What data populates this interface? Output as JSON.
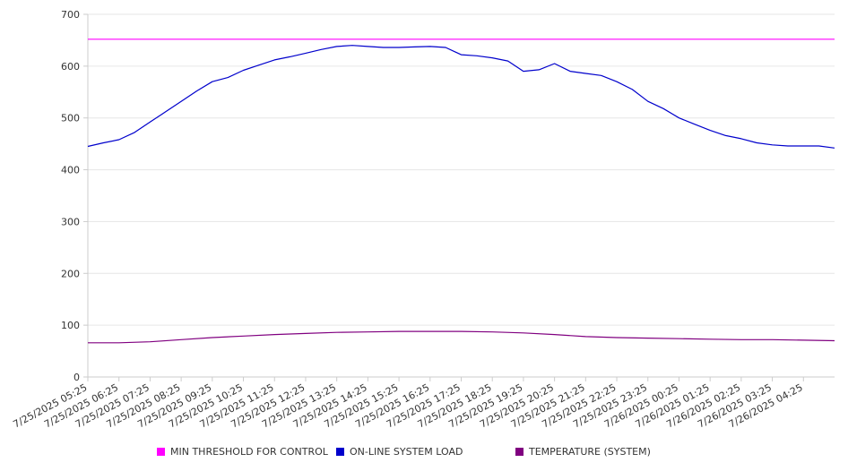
{
  "chart_data": {
    "type": "line",
    "ylim": [
      0,
      700
    ],
    "y_ticks": [
      0,
      100,
      200,
      300,
      400,
      500,
      600,
      700
    ],
    "x_tick_labels": [
      "7/25/2025 05:25",
      "7/25/2025 06:25",
      "7/25/2025 07:25",
      "7/25/2025 08:25",
      "7/25/2025 09:25",
      "7/25/2025 10:25",
      "7/25/2025 11:25",
      "7/25/2025 12:25",
      "7/25/2025 13:25",
      "7/25/2025 14:25",
      "7/25/2025 15:25",
      "7/25/2025 16:25",
      "7/25/2025 17:25",
      "7/25/2025 18:25",
      "7/25/2025 19:25",
      "7/25/2025 20:25",
      "7/25/2025 21:25",
      "7/25/2025 22:25",
      "7/25/2025 23:25",
      "7/26/2025 00:25",
      "7/26/2025 01:25",
      "7/26/2025 02:25",
      "7/26/2025 03:25",
      "7/26/2025 04:25"
    ],
    "x_end": "7/26/2025 05:25",
    "grid": true,
    "legend_position": "bottom",
    "series": [
      {
        "name": "MIN THRESHOLD FOR CONTROL",
        "color": "#ff00ff",
        "x": [
          "7/25/2025 05:25",
          "7/26/2025 05:25"
        ],
        "y": [
          652,
          652
        ]
      },
      {
        "name": "ON-LINE SYSTEM LOAD",
        "color": "#0000cc",
        "x": [
          "7/25/2025 05:25",
          "7/25/2025 05:55",
          "7/25/2025 06:25",
          "7/25/2025 06:55",
          "7/25/2025 07:25",
          "7/25/2025 07:55",
          "7/25/2025 08:25",
          "7/25/2025 08:55",
          "7/25/2025 09:25",
          "7/25/2025 09:55",
          "7/25/2025 10:25",
          "7/25/2025 10:55",
          "7/25/2025 11:25",
          "7/25/2025 11:55",
          "7/25/2025 12:25",
          "7/25/2025 12:55",
          "7/25/2025 13:25",
          "7/25/2025 13:55",
          "7/25/2025 14:25",
          "7/25/2025 14:55",
          "7/25/2025 15:25",
          "7/25/2025 15:55",
          "7/25/2025 16:25",
          "7/25/2025 16:55",
          "7/25/2025 17:25",
          "7/25/2025 17:55",
          "7/25/2025 18:25",
          "7/25/2025 18:55",
          "7/25/2025 19:25",
          "7/25/2025 19:55",
          "7/25/2025 20:25",
          "7/25/2025 20:55",
          "7/25/2025 21:25",
          "7/25/2025 21:55",
          "7/25/2025 22:25",
          "7/25/2025 22:55",
          "7/25/2025 23:25",
          "7/25/2025 23:55",
          "7/26/2025 00:25",
          "7/26/2025 00:55",
          "7/26/2025 01:25",
          "7/26/2025 01:55",
          "7/26/2025 02:25",
          "7/26/2025 02:55",
          "7/26/2025 03:25",
          "7/26/2025 03:55",
          "7/26/2025 04:25",
          "7/26/2025 04:55",
          "7/26/2025 05:25"
        ],
        "y": [
          445,
          452,
          458,
          472,
          492,
          512,
          532,
          552,
          570,
          578,
          592,
          602,
          612,
          618,
          625,
          632,
          638,
          640,
          638,
          636,
          636,
          637,
          638,
          636,
          622,
          620,
          616,
          610,
          590,
          593,
          605,
          590,
          586,
          582,
          570,
          555,
          532,
          518,
          500,
          488,
          476,
          466,
          460,
          452,
          448,
          446,
          446,
          446,
          442
        ]
      },
      {
        "name": "TEMPERATURE (SYSTEM)",
        "color": "#800080",
        "x": [
          "7/25/2025 05:25",
          "7/25/2025 06:25",
          "7/25/2025 07:25",
          "7/25/2025 08:25",
          "7/25/2025 09:25",
          "7/25/2025 10:25",
          "7/25/2025 11:25",
          "7/25/2025 12:25",
          "7/25/2025 13:25",
          "7/25/2025 14:25",
          "7/25/2025 15:25",
          "7/25/2025 16:25",
          "7/25/2025 17:25",
          "7/25/2025 18:25",
          "7/25/2025 19:25",
          "7/25/2025 20:25",
          "7/25/2025 21:25",
          "7/25/2025 22:25",
          "7/25/2025 23:25",
          "7/26/2025 00:25",
          "7/26/2025 01:25",
          "7/26/2025 02:25",
          "7/26/2025 03:25",
          "7/26/2025 04:25",
          "7/26/2025 05:25"
        ],
        "y": [
          66,
          66,
          68,
          72,
          76,
          79,
          82,
          84,
          86,
          87,
          88,
          88,
          88,
          87,
          85,
          82,
          78,
          76,
          75,
          74,
          73,
          72,
          72,
          71,
          70
        ]
      }
    ]
  }
}
